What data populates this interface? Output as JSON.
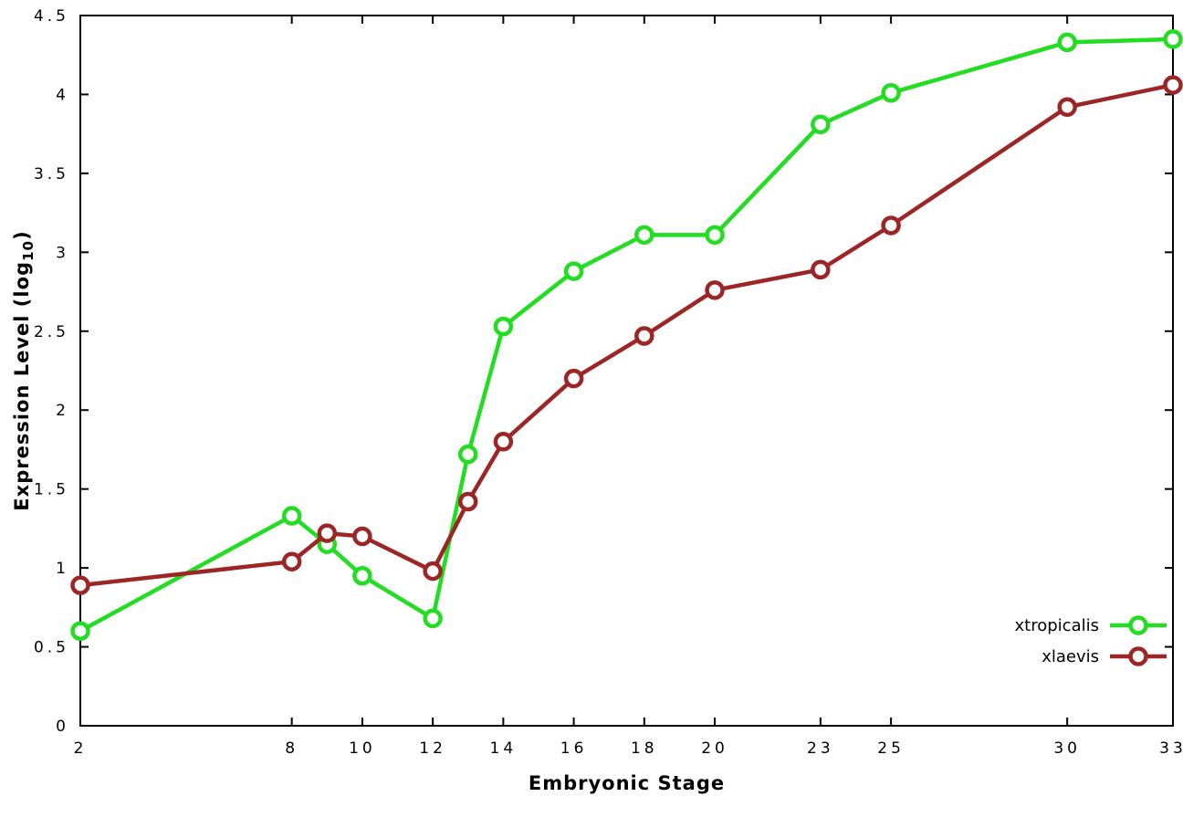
{
  "chart_data": {
    "type": "line",
    "x": [
      2,
      8,
      9,
      10,
      12,
      13,
      14,
      16,
      18,
      20,
      23,
      25,
      30,
      33
    ],
    "series": [
      {
        "name": "xtropicalis",
        "color": "#22dd22",
        "values": [
          0.6,
          1.33,
          1.15,
          0.95,
          0.68,
          1.72,
          2.53,
          2.88,
          3.11,
          3.11,
          3.81,
          4.01,
          4.33,
          4.35
        ]
      },
      {
        "name": "xlaevis",
        "color": "#9c2626",
        "values": [
          0.89,
          1.04,
          1.22,
          1.2,
          0.98,
          1.42,
          1.8,
          2.2,
          2.47,
          2.76,
          2.89,
          3.17,
          3.92,
          4.06
        ]
      }
    ],
    "title": "",
    "xlabel": "Embryonic Stage",
    "ylabel": {
      "prefix": "Expression Level (log",
      "sub": "10",
      "suffix": ")"
    },
    "xlim": [
      2,
      33
    ],
    "ylim": [
      0,
      4.5
    ],
    "xticks": [
      2,
      8,
      10,
      12,
      14,
      16,
      18,
      20,
      23,
      25,
      30,
      33
    ],
    "xtick_labels": [
      "2",
      "8",
      "10",
      "12",
      "14",
      "16",
      "18",
      "20",
      "23",
      "25",
      "30",
      "33"
    ],
    "yticks": [
      0,
      0.5,
      1,
      1.5,
      2,
      2.5,
      3,
      3.5,
      4,
      4.5
    ],
    "ytick_labels": [
      "0",
      "0.5",
      "1",
      "1.5",
      "2",
      "2.5",
      "3",
      "3.5",
      "4",
      "4.5"
    ],
    "grid": false,
    "legend_position": "bottom-right",
    "marker": "open-circle",
    "background": "#ffffff",
    "border_color": "#000000"
  }
}
